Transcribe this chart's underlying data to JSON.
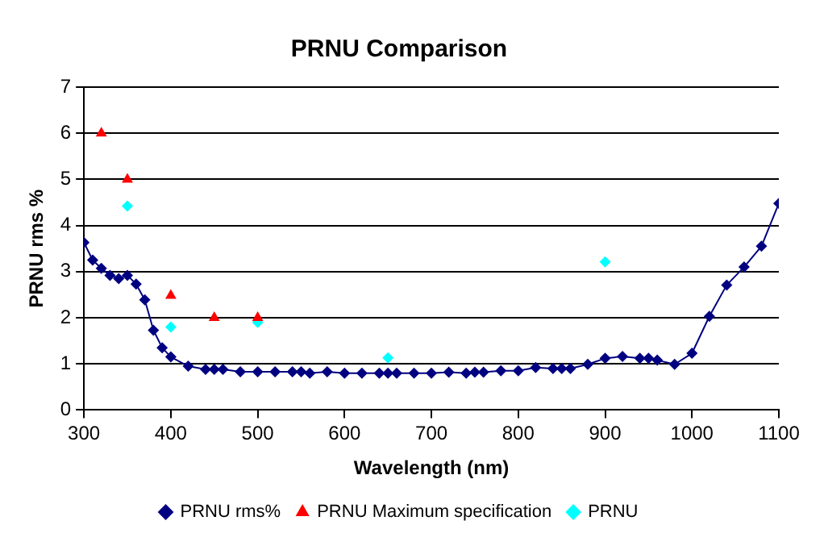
{
  "chart_data": {
    "type": "line",
    "title": "PRNU Comparison",
    "xlabel": "Wavelength (nm)",
    "ylabel": "PRNU rms %",
    "xlim": [
      300,
      1100
    ],
    "xticks": [
      300,
      400,
      500,
      600,
      700,
      800,
      900,
      1000,
      1100
    ],
    "ylim": [
      0,
      7
    ],
    "yticks": [
      0,
      1,
      2,
      3,
      4,
      5,
      6,
      7
    ],
    "grid": "y",
    "legend": "bottom",
    "series": [
      {
        "name": "PRNU rms%",
        "marker": "diamond",
        "color": "#000080",
        "x": [
          300,
          310,
          320,
          330,
          340,
          350,
          360,
          370,
          380,
          390,
          400,
          420,
          440,
          450,
          460,
          480,
          500,
          520,
          540,
          550,
          560,
          580,
          600,
          620,
          640,
          650,
          660,
          680,
          700,
          720,
          740,
          750,
          760,
          780,
          800,
          820,
          840,
          850,
          860,
          880,
          900,
          920,
          940,
          950,
          960,
          980,
          1000,
          1020,
          1040,
          1060,
          1080,
          1100
        ],
        "values": [
          3.63,
          3.25,
          3.07,
          2.92,
          2.85,
          2.92,
          2.73,
          2.39,
          1.73,
          1.35,
          1.15,
          0.95,
          0.88,
          0.88,
          0.88,
          0.83,
          0.83,
          0.83,
          0.83,
          0.83,
          0.8,
          0.83,
          0.8,
          0.8,
          0.8,
          0.8,
          0.8,
          0.8,
          0.8,
          0.82,
          0.8,
          0.82,
          0.82,
          0.85,
          0.85,
          0.92,
          0.9,
          0.9,
          0.9,
          0.99,
          1.12,
          1.16,
          1.12,
          1.12,
          1.08,
          0.99,
          1.23,
          2.03,
          2.71,
          3.1,
          3.55,
          4.48
        ]
      },
      {
        "name": "PRNU Maximum specification",
        "type": "scatter",
        "marker": "triangle",
        "color": "#ff0000",
        "x": [
          320,
          350,
          400,
          450,
          500
        ],
        "values": [
          6,
          5,
          2.48,
          2,
          2
        ]
      },
      {
        "name": "PRNU",
        "type": "scatter",
        "marker": "diamond",
        "color": "#00ffff",
        "x": [
          350,
          400,
          500,
          650,
          900
        ],
        "values": [
          4.42,
          1.8,
          1.9,
          1.13,
          3.21
        ]
      }
    ]
  }
}
